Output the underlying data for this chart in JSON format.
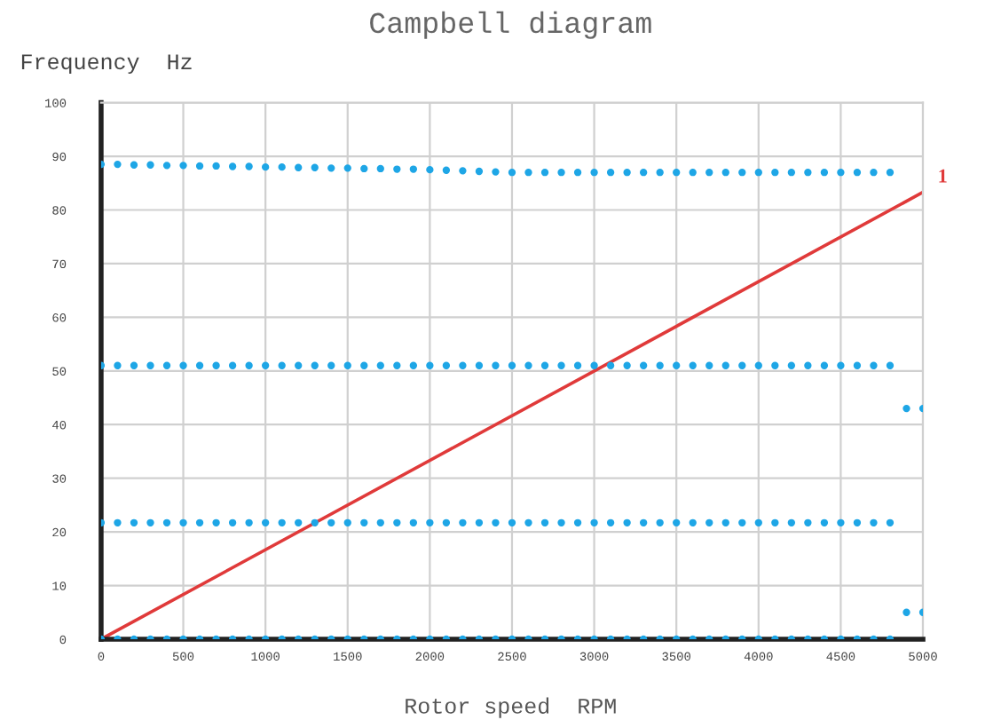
{
  "chart_data": {
    "type": "scatter",
    "title": "Campbell diagram",
    "xlabel": "Rotor speed  RPM",
    "ylabel": "Frequency  Hz",
    "x": [
      0,
      100,
      200,
      300,
      400,
      500,
      600,
      700,
      800,
      900,
      1000,
      1100,
      1200,
      1300,
      1400,
      1500,
      1600,
      1700,
      1800,
      1900,
      2000,
      2100,
      2200,
      2300,
      2400,
      2500,
      2600,
      2700,
      2800,
      2900,
      3000,
      3100,
      3200,
      3300,
      3400,
      3500,
      3600,
      3700,
      3800,
      3900,
      4000,
      4100,
      4200,
      4300,
      4400,
      4500,
      4600,
      4700,
      4800
    ],
    "series": [
      {
        "color": "#1ea6e6",
        "values": [
          0,
          0,
          0,
          0,
          0,
          0,
          0,
          0,
          0,
          0,
          0,
          0,
          0,
          0,
          0,
          0,
          0,
          0,
          0,
          0,
          0,
          0,
          0,
          0,
          0,
          0,
          0,
          0,
          0,
          0,
          0,
          0,
          0,
          0,
          0,
          0,
          0,
          0,
          0,
          0,
          0,
          0,
          0,
          0,
          0,
          0,
          0,
          0,
          0
        ]
      },
      {
        "color": "#1ea6e6",
        "values": [
          21.7,
          21.7,
          21.7,
          21.7,
          21.7,
          21.7,
          21.7,
          21.7,
          21.7,
          21.7,
          21.7,
          21.7,
          21.7,
          21.7,
          21.7,
          21.7,
          21.7,
          21.7,
          21.7,
          21.7,
          21.7,
          21.7,
          21.7,
          21.7,
          21.7,
          21.7,
          21.7,
          21.7,
          21.7,
          21.7,
          21.7,
          21.7,
          21.7,
          21.7,
          21.7,
          21.7,
          21.7,
          21.7,
          21.7,
          21.7,
          21.7,
          21.7,
          21.7,
          21.7,
          21.7,
          21.7,
          21.7,
          21.7,
          21.7
        ]
      },
      {
        "color": "#1ea6e6",
        "values": [
          51,
          51,
          51,
          51,
          51,
          51,
          51,
          51,
          51,
          51,
          51,
          51,
          51,
          51,
          51,
          51,
          51,
          51,
          51,
          51,
          51,
          51,
          51,
          51,
          51,
          51,
          51,
          51,
          51,
          51,
          51,
          51,
          51,
          51,
          51,
          51,
          51,
          51,
          51,
          51,
          51,
          51,
          51,
          51,
          51,
          51,
          51,
          51,
          51
        ]
      },
      {
        "color": "#1ea6e6",
        "values": [
          88.5,
          88.5,
          88.4,
          88.4,
          88.3,
          88.3,
          88.2,
          88.2,
          88.1,
          88.1,
          88.0,
          88.0,
          87.9,
          87.9,
          87.8,
          87.8,
          87.7,
          87.7,
          87.6,
          87.6,
          87.5,
          87.4,
          87.3,
          87.2,
          87.1,
          87,
          87,
          87,
          87,
          87,
          87,
          87,
          87,
          87,
          87,
          87,
          87,
          87,
          87,
          87,
          87,
          87,
          87,
          87,
          87,
          87,
          87,
          87,
          87
        ]
      },
      {
        "color": "#1ea6e6",
        "x": [
          4900,
          5000
        ],
        "values": [
          43,
          43
        ]
      },
      {
        "color": "#1ea6e6",
        "x": [
          4900,
          5000
        ],
        "values": [
          5,
          5
        ]
      },
      {
        "type": "line",
        "marker": "none",
        "name": "1",
        "color": "#e03a3a",
        "x": [
          0,
          5000
        ],
        "values": [
          0,
          83.3
        ]
      }
    ],
    "marker": "circle",
    "xlim": [
      0,
      5000
    ],
    "ylim": [
      0,
      100
    ],
    "xticks": [
      0,
      500,
      1000,
      1500,
      2000,
      2500,
      3000,
      3500,
      4000,
      4500,
      5000
    ],
    "yticks": [
      0,
      10,
      20,
      30,
      40,
      50,
      60,
      70,
      80,
      90,
      100
    ],
    "grid": true
  }
}
